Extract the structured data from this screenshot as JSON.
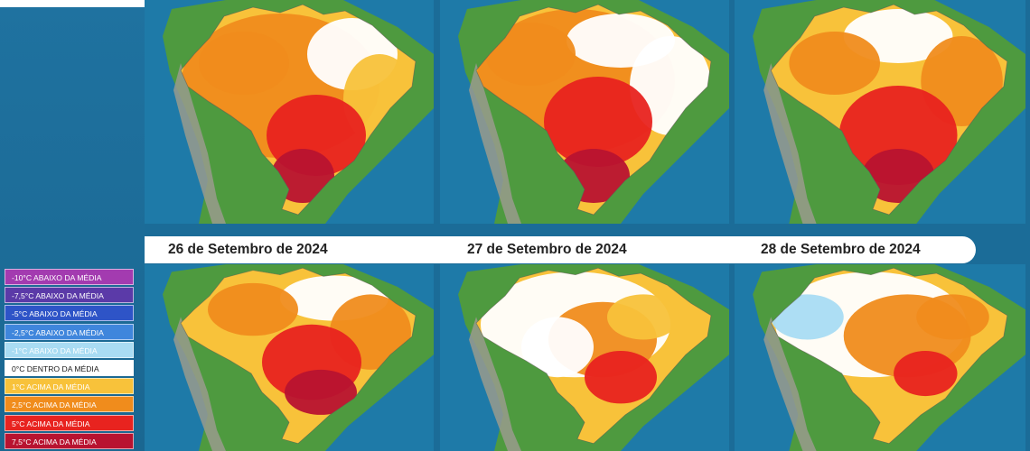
{
  "dates": [
    "26 de Setembro de 2024",
    "27 de Setembro de 2024",
    "28 de Setembro de 2024"
  ],
  "legend": [
    {
      "label": "-10°C ABAIXO DA MÉDIA",
      "color": "#a33bb0"
    },
    {
      "label": "-7,5°C ABAIXO DA MÉDIA",
      "color": "#5b3aa8"
    },
    {
      "label": "-5°C ABAIXO DA MÉDIA",
      "color": "#2e54c7"
    },
    {
      "label": "-2,5°C ABAIXO DA MÉDIA",
      "color": "#3f86dc"
    },
    {
      "label": "-1°C ABAIXO DA MÉDIA",
      "color": "#a9dcf3"
    },
    {
      "label": "0°C DENTRO DA MÉDIA",
      "color": "#ffffff"
    },
    {
      "label": "1°C ACIMA DA MÉDIA",
      "color": "#f8c23a"
    },
    {
      "label": "2,5°C ACIMA DA MÉDIA",
      "color": "#f08c1c"
    },
    {
      "label": "5°C ACIMA DA MÉDIA",
      "color": "#e8231f"
    },
    {
      "label": "7,5°C ACIMA DA MÉDIA",
      "color": "#b81330"
    }
  ],
  "colors": {
    "ocean": "#1e7aa8",
    "land_green": "#4e9a3f",
    "andes": "#9a9b8d"
  }
}
